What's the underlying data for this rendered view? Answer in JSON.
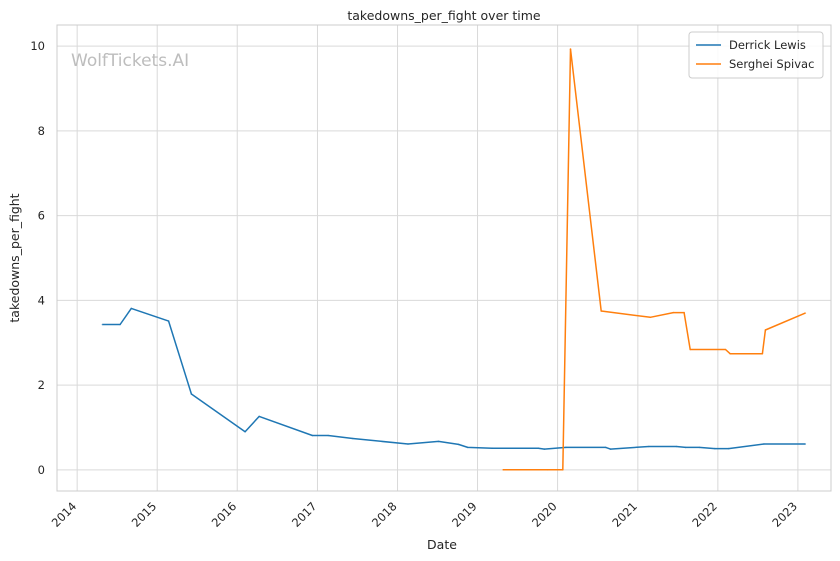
{
  "chart_data": {
    "type": "line",
    "title": "takedowns_per_fight over time",
    "xlabel": "Date",
    "ylabel": "takedowns_per_fight",
    "watermark": "WolfTickets.AI",
    "x_ticks": [
      "2014",
      "2015",
      "2016",
      "2017",
      "2018",
      "2019",
      "2020",
      "2021",
      "2022",
      "2023"
    ],
    "y_ticks": [
      "0",
      "2",
      "4",
      "6",
      "8",
      "10"
    ],
    "xlim": [
      "2013-10-01",
      "2023-06-01"
    ],
    "ylim": [
      -0.5,
      10.5
    ],
    "grid": true,
    "legend_position": "top-right",
    "series": [
      {
        "name": "Derrick Lewis",
        "color": "#1f77b4",
        "points": [
          {
            "x": "2014-04-26",
            "y": 3.43
          },
          {
            "x": "2014-07-16",
            "y": 3.43
          },
          {
            "x": "2014-09-05",
            "y": 3.81
          },
          {
            "x": "2015-02-22",
            "y": 3.51
          },
          {
            "x": "2015-06-06",
            "y": 1.79
          },
          {
            "x": "2016-02-06",
            "y": 0.9
          },
          {
            "x": "2016-04-10",
            "y": 1.26
          },
          {
            "x": "2016-12-09",
            "y": 0.81
          },
          {
            "x": "2017-02-19",
            "y": 0.81
          },
          {
            "x": "2017-06-11",
            "y": 0.74
          },
          {
            "x": "2018-02-18",
            "y": 0.61
          },
          {
            "x": "2018-07-07",
            "y": 0.67
          },
          {
            "x": "2018-10-06",
            "y": 0.6
          },
          {
            "x": "2018-11-17",
            "y": 0.53
          },
          {
            "x": "2019-03-09",
            "y": 0.51
          },
          {
            "x": "2019-10-05",
            "y": 0.51
          },
          {
            "x": "2019-11-02",
            "y": 0.49
          },
          {
            "x": "2020-02-08",
            "y": 0.53
          },
          {
            "x": "2020-08-08",
            "y": 0.53
          },
          {
            "x": "2020-08-29",
            "y": 0.49
          },
          {
            "x": "2021-02-20",
            "y": 0.55
          },
          {
            "x": "2021-06-26",
            "y": 0.55
          },
          {
            "x": "2021-08-07",
            "y": 0.53
          },
          {
            "x": "2021-10-09",
            "y": 0.53
          },
          {
            "x": "2021-12-18",
            "y": 0.5
          },
          {
            "x": "2022-02-19",
            "y": 0.5
          },
          {
            "x": "2022-07-30",
            "y": 0.61
          },
          {
            "x": "2023-02-04",
            "y": 0.61
          }
        ]
      },
      {
        "name": "Serghei Spivac",
        "color": "#ff7f0e",
        "points": [
          {
            "x": "2019-04-27",
            "y": 0.0
          },
          {
            "x": "2019-11-16",
            "y": 0.0
          },
          {
            "x": "2020-01-25",
            "y": 0.0
          },
          {
            "x": "2020-02-29",
            "y": 9.93
          },
          {
            "x": "2020-07-18",
            "y": 3.75
          },
          {
            "x": "2021-02-27",
            "y": 3.6
          },
          {
            "x": "2021-06-12",
            "y": 3.71
          },
          {
            "x": "2021-07-31",
            "y": 3.71
          },
          {
            "x": "2021-08-28",
            "y": 2.84
          },
          {
            "x": "2022-02-05",
            "y": 2.84
          },
          {
            "x": "2022-02-26",
            "y": 2.74
          },
          {
            "x": "2022-07-23",
            "y": 2.74
          },
          {
            "x": "2022-08-06",
            "y": 3.3
          },
          {
            "x": "2023-02-04",
            "y": 3.7
          }
        ]
      }
    ]
  }
}
